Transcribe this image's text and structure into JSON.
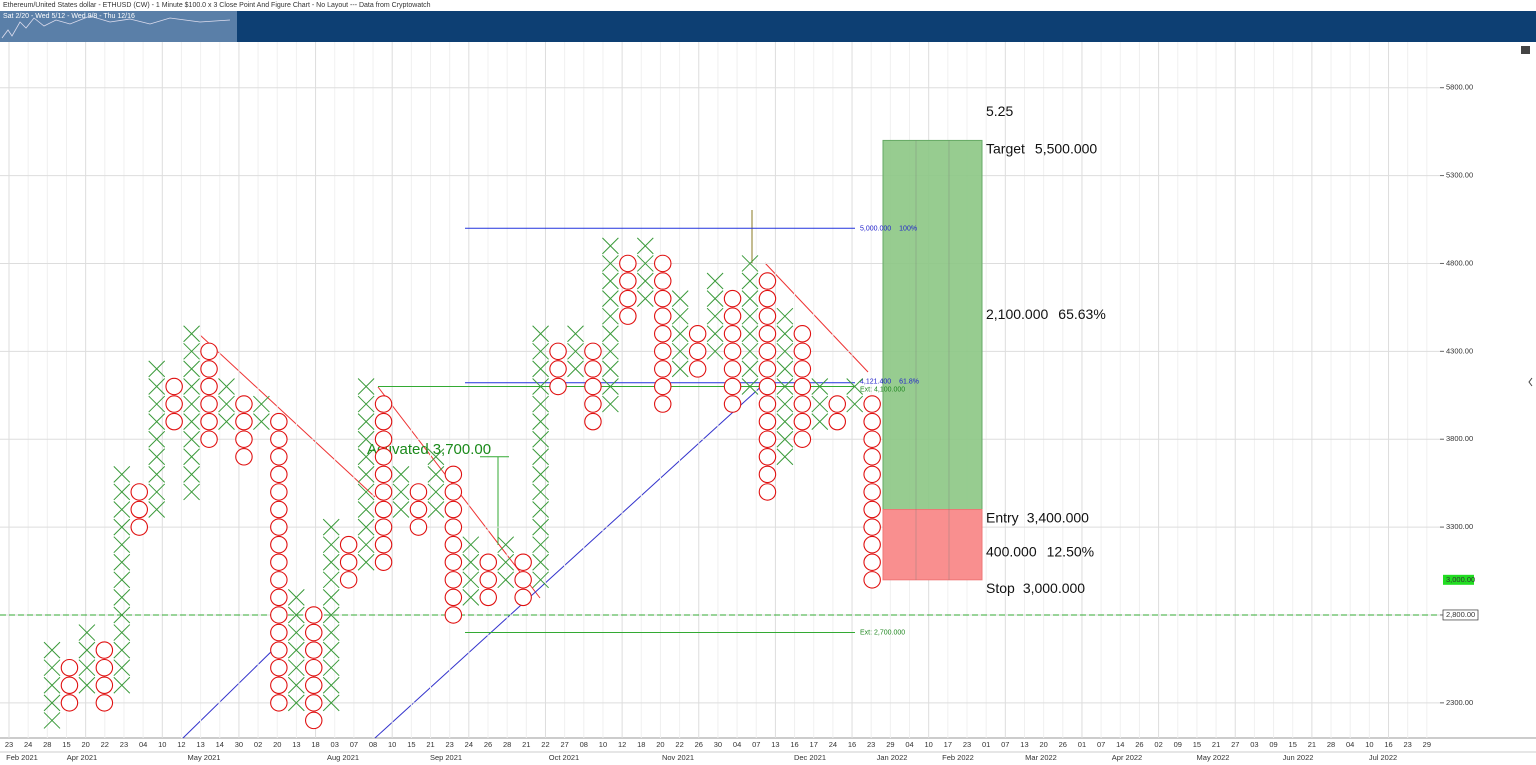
{
  "header": {
    "title": "Ethereum/United States dollar - ETHUSD (CW) - 1 Minute $100.0 x 3 Close Point And Figure Chart - No Layout --- Data from Cryptowatch",
    "navigator": "Sat 2/20 - Wed 5/12 - Wed 9/8 - Thu 12/16"
  },
  "chart_data": {
    "type": "pointfigure",
    "box_size": 100,
    "columns": [
      {
        "type": "X",
        "high": 2600,
        "low": 2200
      },
      {
        "type": "O",
        "high": 2500,
        "low": 2300
      },
      {
        "type": "X",
        "high": 2700,
        "low": 2400
      },
      {
        "type": "O",
        "high": 2600,
        "low": 2300
      },
      {
        "type": "X",
        "high": 3600,
        "low": 2400
      },
      {
        "type": "O",
        "high": 3500,
        "low": 3300
      },
      {
        "type": "X",
        "high": 4200,
        "low": 3400
      },
      {
        "type": "O",
        "high": 4100,
        "low": 3900
      },
      {
        "type": "X",
        "high": 4400,
        "low": 3500
      },
      {
        "type": "O",
        "high": 4300,
        "low": 3800
      },
      {
        "type": "X",
        "high": 4100,
        "low": 3900
      },
      {
        "type": "O",
        "high": 4000,
        "low": 3700
      },
      {
        "type": "X",
        "high": 4000,
        "low": 3900
      },
      {
        "type": "O",
        "high": 3900,
        "low": 2300
      },
      {
        "type": "X",
        "high": 2900,
        "low": 2300
      },
      {
        "type": "O",
        "high": 2800,
        "low": 2200
      },
      {
        "type": "X",
        "high": 3300,
        "low": 2300
      },
      {
        "type": "O",
        "high": 3200,
        "low": 3000
      },
      {
        "type": "X",
        "high": 4100,
        "low": 3100
      },
      {
        "type": "O",
        "high": 4000,
        "low": 3100
      },
      {
        "type": "X",
        "high": 3600,
        "low": 3400
      },
      {
        "type": "O",
        "high": 3500,
        "low": 3300
      },
      {
        "type": "X",
        "high": 3700,
        "low": 3400
      },
      {
        "type": "O",
        "high": 3600,
        "low": 2800
      },
      {
        "type": "X",
        "high": 3200,
        "low": 2900
      },
      {
        "type": "O",
        "high": 3100,
        "low": 2900
      },
      {
        "type": "X",
        "high": 3200,
        "low": 3000
      },
      {
        "type": "O",
        "high": 3100,
        "low": 2900
      },
      {
        "type": "X",
        "high": 4400,
        "low": 3000
      },
      {
        "type": "O",
        "high": 4300,
        "low": 4100
      },
      {
        "type": "X",
        "high": 4400,
        "low": 4200
      },
      {
        "type": "O",
        "high": 4300,
        "low": 3900
      },
      {
        "type": "X",
        "high": 4900,
        "low": 4000
      },
      {
        "type": "O",
        "high": 4800,
        "low": 4500
      },
      {
        "type": "X",
        "high": 4900,
        "low": 4600
      },
      {
        "type": "O",
        "high": 4800,
        "low": 4000
      },
      {
        "type": "X",
        "high": 4600,
        "low": 4200
      },
      {
        "type": "O",
        "high": 4400,
        "low": 4200
      },
      {
        "type": "X",
        "high": 4700,
        "low": 4300
      },
      {
        "type": "O",
        "high": 4600,
        "low": 4000
      },
      {
        "type": "X",
        "high": 4800,
        "low": 4100
      },
      {
        "type": "O",
        "high": 4700,
        "low": 3500
      },
      {
        "type": "X",
        "high": 4500,
        "low": 3700
      },
      {
        "type": "O",
        "high": 4400,
        "low": 3800
      },
      {
        "type": "X",
        "high": 4100,
        "low": 3900
      },
      {
        "type": "O",
        "high": 4000,
        "low": 3900
      },
      {
        "type": "X",
        "high": 4100,
        "low": 4000
      },
      {
        "type": "O",
        "high": 4000,
        "low": 3000
      }
    ],
    "ylim": [
      2100,
      6060
    ],
    "yticks": [
      {
        "value": 2300,
        "label": "2300.00"
      },
      {
        "value": 2800,
        "label": "2800.00"
      },
      {
        "value": 3300,
        "label": "3300.00"
      },
      {
        "value": 3800,
        "label": "3800.00"
      },
      {
        "value": 4300,
        "label": "4300.00"
      },
      {
        "value": 4800,
        "label": "4800.00"
      },
      {
        "value": 5300,
        "label": "5300.00"
      },
      {
        "value": 5800,
        "label": "5800.00"
      }
    ],
    "x_dates": [
      "23",
      "24",
      "28",
      "15",
      "20",
      "22",
      "23",
      "04",
      "10",
      "12",
      "13",
      "14",
      "30",
      "02",
      "20",
      "13",
      "18",
      "03",
      "07",
      "08",
      "10",
      "15",
      "21",
      "23",
      "24",
      "26",
      "28",
      "21",
      "22",
      "27",
      "08",
      "10",
      "12",
      "18",
      "20",
      "22",
      "26",
      "30",
      "04",
      "07",
      "13",
      "16",
      "17",
      "24",
      "16",
      "23",
      "29",
      "04",
      "10",
      "17",
      "23",
      "01",
      "07",
      "13",
      "20",
      "26",
      "01",
      "07",
      "14",
      "26",
      "02",
      "09",
      "15",
      "21",
      "27",
      "03",
      "09",
      "15",
      "21",
      "28",
      "04",
      "10",
      "16",
      "23",
      "29"
    ],
    "x_months": [
      "Feb 2021",
      "Apr 2021",
      "May 2021",
      "Aug 2021",
      "Sep 2021",
      "Oct 2021",
      "Nov 2021",
      "Dec 2021",
      "Jan 2022",
      "Feb 2022",
      "Mar 2022",
      "Apr 2022",
      "May 2022",
      "Jun 2022",
      "Jul 2022"
    ],
    "last_price": {
      "value": 3000,
      "label": "3,000.00"
    },
    "crosshair_price": {
      "value": 2800,
      "label": "2,800.00"
    },
    "fib": [
      {
        "value": 5000,
        "label": "5,000.000",
        "pct": "100%"
      },
      {
        "value": 4121.4,
        "label": "4,121.400",
        "pct": "61.8%"
      }
    ],
    "extensions": [
      {
        "value": 4100,
        "label": "Ext: 4,100.000"
      },
      {
        "value": 2700,
        "label": "Ext: 2,700.000"
      }
    ],
    "activated": {
      "text": "Activated",
      "value": 3700,
      "label": "3,700.00"
    },
    "position": {
      "target": {
        "text": "Target",
        "value": 5500,
        "label": "5,500.000"
      },
      "entry": {
        "text": "Entry",
        "value": 3400,
        "label": "3,400.000"
      },
      "stop": {
        "text": "Stop",
        "value": 3000,
        "label": "3,000.000"
      },
      "reward": {
        "value": 2100,
        "label": "2,100.000",
        "pct": 65.63,
        "pct_label": "65.63%"
      },
      "risk": {
        "value": 400,
        "label": "400.000",
        "pct": 12.5,
        "pct_label": "12.50%"
      },
      "ratio": 5.25
    }
  }
}
